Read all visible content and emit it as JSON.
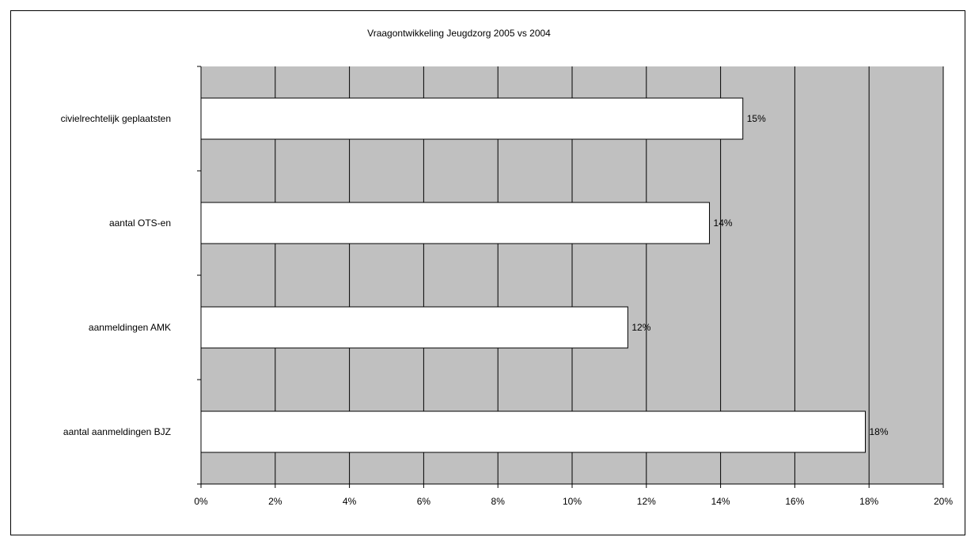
{
  "chart_data": {
    "type": "bar",
    "orientation": "horizontal",
    "title": "Vraagontwikkeling Jeugdzorg 2005 vs 2004",
    "xlabel": "",
    "ylabel": "",
    "categories": [
      "civielrechtelijk geplaatsten",
      "aantal OTS-en",
      "aanmeldingen AMK",
      "aantal aanmeldingen BJZ"
    ],
    "values": [
      0.146,
      0.137,
      0.115,
      0.179
    ],
    "data_labels": [
      "15%",
      "14%",
      "12%",
      "18%"
    ],
    "xlim": [
      0,
      0.2
    ],
    "x_ticks": [
      0,
      0.02,
      0.04,
      0.06,
      0.08,
      0.1,
      0.12,
      0.14,
      0.16,
      0.18,
      0.2
    ],
    "x_tick_labels": [
      "0%",
      "2%",
      "4%",
      "6%",
      "8%",
      "10%",
      "12%",
      "14%",
      "16%",
      "18%",
      "20%"
    ],
    "grid": "vertical",
    "legend": "none",
    "colors": {
      "plot_background": "#c0c0c0",
      "bar_fill": "#ffffff",
      "bar_stroke": "#000000",
      "grid": "#000000"
    }
  }
}
